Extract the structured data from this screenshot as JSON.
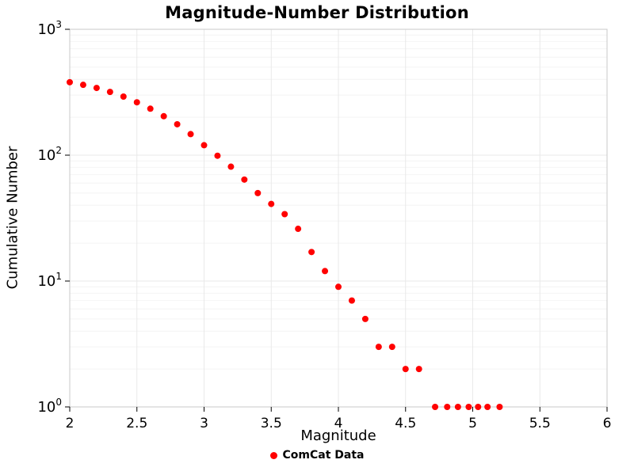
{
  "chart_data": {
    "type": "scatter",
    "title": "Magnitude-Number Distribution",
    "xlabel": "Magnitude",
    "ylabel": "Cumulative Number",
    "legend_position": "bottom-center",
    "grid": true,
    "x_range": [
      2,
      6
    ],
    "x_ticks": [
      2,
      2.5,
      3,
      3.5,
      4,
      4.5,
      5,
      5.5,
      6
    ],
    "x_tick_labels": [
      "2",
      "2.5",
      "3",
      "3.5",
      "4",
      "4.5",
      "5",
      "5.5",
      "6"
    ],
    "y_scale": "log",
    "y_range": [
      1,
      1000
    ],
    "y_ticks": [
      1,
      10,
      100,
      1000
    ],
    "y_tick_exponents": [
      0,
      1,
      2,
      3
    ],
    "series": [
      {
        "name": "ComCat Data",
        "marker": "circle",
        "color": "#ff0000",
        "x": [
          2.0,
          2.1,
          2.2,
          2.3,
          2.4,
          2.5,
          2.6,
          2.7,
          2.8,
          2.9,
          3.0,
          3.1,
          3.2,
          3.3,
          3.4,
          3.5,
          3.6,
          3.7,
          3.8,
          3.9,
          4.0,
          4.1,
          4.2,
          4.3,
          4.4,
          4.5,
          4.6,
          4.72,
          4.81,
          4.89,
          4.97,
          5.04,
          5.11,
          5.2
        ],
        "y": [
          380,
          362,
          342,
          318,
          292,
          263,
          234,
          204,
          176,
          147,
          120,
          99,
          81,
          64,
          50,
          41,
          34,
          26,
          17,
          12,
          9,
          7,
          5,
          3,
          3,
          2,
          2,
          1,
          1,
          1,
          1,
          1,
          1,
          1
        ]
      }
    ]
  }
}
